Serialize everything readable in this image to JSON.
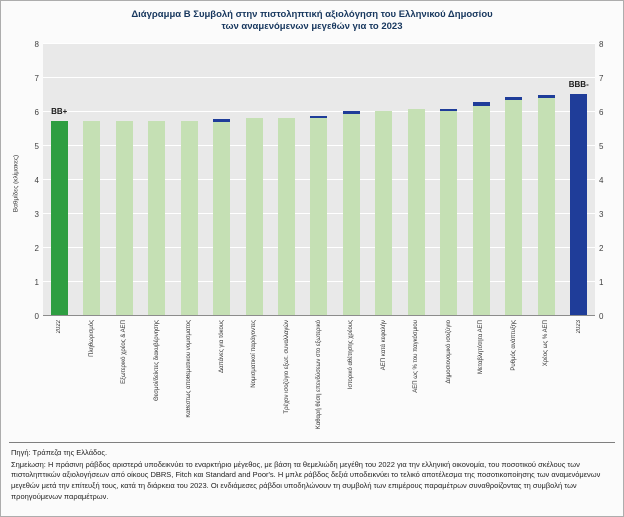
{
  "title": {
    "line1": "Διάγραμμα Β Συμβολή στην πιστοληπτική αξιολόγηση του Ελληνικού Δημοσίου",
    "line2": "των αναμενόμενων μεγεθών για το 2023"
  },
  "chart_data": {
    "type": "bar",
    "ylabel": "Βαθμίδες (κλίμακες)",
    "xlabel": "",
    "ylim": [
      0,
      8
    ],
    "yticks": [
      0,
      1,
      2,
      3,
      4,
      5,
      6,
      7,
      8
    ],
    "grid": true,
    "colors": {
      "start": "#2e9e41",
      "mid": "#c5e0b4",
      "cap": "#1f3d99",
      "end": "#1f3d99"
    },
    "bars": [
      {
        "label": "2022",
        "value": 5.7,
        "cap": 0,
        "color": "start",
        "annotation": "BB+"
      },
      {
        "label": "Πληθωρισμός",
        "value": 5.7,
        "cap": 0,
        "color": "mid"
      },
      {
        "label": "Εξωτερικό χρέος & ΑΕΠ",
        "value": 5.7,
        "cap": 0,
        "color": "mid"
      },
      {
        "label": "Θεσμοί/δείκτες διακυβέρνησης",
        "value": 5.7,
        "cap": 0,
        "color": "mid"
      },
      {
        "label": "Καθεστώς αποθεματικού νομίσματος",
        "value": 5.7,
        "cap": 0,
        "color": "mid"
      },
      {
        "label": "Δαπάνες για τόκους",
        "value": 5.75,
        "cap": 0.07,
        "color": "mid"
      },
      {
        "label": "Νομισματικοί παράγοντες",
        "value": 5.8,
        "cap": 0,
        "color": "mid"
      },
      {
        "label": "Τρέχον ισοζύγιο εξωτ. συναλλαγών",
        "value": 5.8,
        "cap": 0,
        "color": "mid"
      },
      {
        "label": "Καθαρή θέση επενδύσεων στο εξωτερικό",
        "value": 5.85,
        "cap": 0.07,
        "color": "mid"
      },
      {
        "label": "Ιστορικό αθέτησης χρέους",
        "value": 6.0,
        "cap": 0.1,
        "color": "mid"
      },
      {
        "label": "ΑΕΠ κατά κεφαλήν",
        "value": 6.0,
        "cap": 0,
        "color": "mid"
      },
      {
        "label": "ΑΕΠ ως % του παγκόσμιου",
        "value": 6.05,
        "cap": 0,
        "color": "mid"
      },
      {
        "label": "Δημοσιονομικό ισοζύγιο",
        "value": 6.05,
        "cap": 0.05,
        "color": "mid"
      },
      {
        "label": "Μεταβλητότητα ΑΕΠ",
        "value": 6.25,
        "cap": 0.1,
        "color": "mid"
      },
      {
        "label": "Ρυθμός ανάπτυξης",
        "value": 6.4,
        "cap": 0.08,
        "color": "mid"
      },
      {
        "label": "Χρέος ως % ΑΕΠ",
        "value": 6.45,
        "cap": 0.08,
        "color": "mid"
      },
      {
        "label": "2023",
        "value": 6.5,
        "cap": 0,
        "color": "end",
        "annotation": "BBB-"
      }
    ]
  },
  "footer": {
    "source": "Πηγή: Τράπεζα της Ελλάδος.",
    "note": "Σημείωση: Η πράσινη ράβδος αριστερά υποδεικνύει το εναρκτήριο μέγεθος, με βάση τα θεμελιώδη μεγέθη του 2022 για την ελληνική οικονομία, του ποσοτικού σκέλους των πιστοληπτικών αξιολογήσεων από οίκους DBRS, Fitch και Standard and Poor's. Η μπλε ράβδος δεξιά υποδεικνύει το τελικό αποτέλεσμα της ποσοτικοποίησης των αναμενόμενων μεγεθών μετά την επίτευξή τους, κατά τη διάρκεια του 2023. Οι ενδιάμεσες ράβδοι υποδηλώνουν τη συμβολή των επιμέρους παραμέτρων συναθροίζοντας τη συμβολή των προηγούμενων παραμέτρων."
  }
}
